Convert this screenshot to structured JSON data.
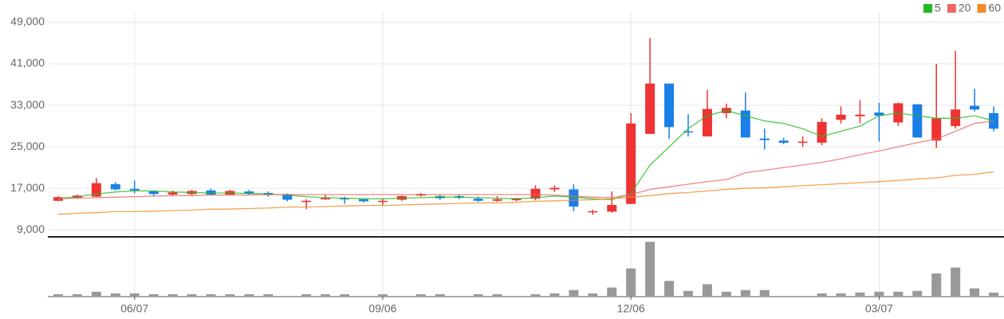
{
  "chart_data": {
    "type": "candlestick",
    "categories": [
      null,
      null,
      null,
      null,
      "06/07",
      null,
      null,
      null,
      null,
      null,
      null,
      null,
      null,
      null,
      null,
      null,
      null,
      "09/06",
      null,
      null,
      null,
      null,
      null,
      null,
      null,
      null,
      null,
      null,
      null,
      null,
      "12/06",
      null,
      null,
      null,
      null,
      null,
      null,
      null,
      null,
      null,
      null,
      null,
      null,
      "03/07",
      null,
      null,
      null,
      null,
      null,
      null
    ],
    "open": [
      14600,
      15200,
      15400,
      17800,
      16900,
      16400,
      15800,
      15900,
      16600,
      15800,
      16400,
      16100,
      15900,
      14400,
      14900,
      15100,
      14900,
      14400,
      14800,
      15600,
      15500,
      15500,
      15000,
      14600,
      14700,
      15000,
      16800,
      16800,
      12400,
      12500,
      14000,
      27500,
      37200,
      28000,
      27000,
      31500,
      32000,
      26600,
      26200,
      25800,
      25800,
      30200,
      30900,
      31600,
      29700,
      33200,
      26200,
      29000,
      32900,
      31500
    ],
    "high": [
      15500,
      15800,
      19000,
      18200,
      18500,
      16600,
      16600,
      16700,
      16900,
      16700,
      16700,
      16400,
      16000,
      14900,
      15800,
      15400,
      15100,
      15000,
      15600,
      16100,
      15700,
      15700,
      15400,
      15500,
      15200,
      17600,
      17600,
      17800,
      12900,
      16400,
      31500,
      46000,
      37200,
      31300,
      36000,
      33300,
      35500,
      28500,
      26700,
      27000,
      30500,
      32800,
      34000,
      33500,
      33500,
      33200,
      41000,
      43500,
      36200,
      32800
    ],
    "low": [
      14500,
      15000,
      15300,
      16600,
      16000,
      15500,
      15500,
      15700,
      15700,
      15700,
      15800,
      15400,
      14500,
      13000,
      14800,
      14000,
      14300,
      13800,
      14600,
      15400,
      14800,
      14900,
      14400,
      14400,
      14500,
      14700,
      16300,
      12600,
      11900,
      12300,
      14000,
      27500,
      26500,
      27000,
      27000,
      30500,
      26800,
      24500,
      25500,
      25000,
      25300,
      29500,
      29500,
      26000,
      29000,
      26800,
      24800,
      28500,
      31800,
      28000
    ],
    "close": [
      15300,
      15600,
      18000,
      16800,
      16600,
      15900,
      16200,
      16500,
      15800,
      16500,
      16000,
      15700,
      14800,
      14600,
      15100,
      14900,
      14500,
      14600,
      15500,
      15900,
      15100,
      15200,
      14600,
      14900,
      15000,
      16900,
      17100,
      13500,
      12600,
      13800,
      29500,
      37200,
      28800,
      27800,
      32300,
      32500,
      26800,
      26300,
      25800,
      26000,
      29800,
      31200,
      31200,
      31000,
      33400,
      26800,
      30500,
      32200,
      32200,
      28500
    ],
    "up_color": "#ee3333",
    "down_color": "#1a7fe6",
    "ylim": [
      7800,
      51000
    ],
    "yticks": [
      {
        "value": 9000,
        "label": "9,000"
      },
      {
        "value": 17000,
        "label": "17,000"
      },
      {
        "value": 25000,
        "label": "25,000"
      },
      {
        "value": 33000,
        "label": "33,000"
      },
      {
        "value": 41000,
        "label": "41,000"
      },
      {
        "value": 49000,
        "label": "49,000"
      }
    ],
    "grid": true,
    "legend": "top-right",
    "series": [
      {
        "name": "5",
        "color": "#22bb22",
        "values": [
          15000,
          15400,
          15900,
          16300,
          16500,
          16500,
          16300,
          16200,
          16100,
          16100,
          16000,
          15900,
          15700,
          15400,
          15200,
          15100,
          15000,
          15000,
          15100,
          15200,
          15300,
          15300,
          15200,
          15100,
          15000,
          15200,
          15500,
          15300,
          15000,
          14800,
          16000,
          21500,
          25000,
          28500,
          31000,
          32000,
          31000,
          30000,
          29500,
          28500,
          27000,
          28000,
          29000,
          31000,
          31500,
          31000,
          30500,
          30500,
          31000,
          30000
        ]
      },
      {
        "name": "20",
        "color": "#ee6666",
        "values": [
          15000,
          15100,
          15200,
          15300,
          15400,
          15500,
          15600,
          15600,
          15700,
          15700,
          15700,
          15800,
          15800,
          15800,
          15800,
          15800,
          15800,
          15800,
          15800,
          15800,
          15800,
          15800,
          15800,
          15800,
          15800,
          15800,
          15700,
          15500,
          15300,
          15200,
          15800,
          16800,
          17300,
          17800,
          18300,
          18700,
          20000,
          20500,
          21000,
          21500,
          22000,
          22700,
          23500,
          24200,
          25000,
          25800,
          26500,
          28000,
          29500,
          30000
        ]
      },
      {
        "name": "60",
        "color": "#f08c28",
        "values": [
          12000,
          12200,
          12300,
          12500,
          12500,
          12600,
          12700,
          12800,
          13000,
          13000,
          13100,
          13200,
          13400,
          13400,
          13500,
          13600,
          13700,
          13700,
          13800,
          13900,
          14000,
          14100,
          14200,
          14200,
          14300,
          14500,
          14600,
          14700,
          14800,
          15000,
          15300,
          15600,
          16000,
          16200,
          16500,
          16800,
          17000,
          17100,
          17300,
          17500,
          17700,
          17900,
          18100,
          18300,
          18500,
          18800,
          19000,
          19500,
          19700,
          20200
        ]
      }
    ],
    "volume": {
      "color": "#999999",
      "ylim": [
        0,
        70
      ],
      "values": [
        2,
        2,
        5,
        3,
        3,
        2,
        2,
        2,
        2,
        2,
        2,
        2,
        0,
        2,
        2,
        2,
        0,
        2,
        0,
        2,
        2,
        0,
        2,
        2,
        0,
        2,
        3,
        7,
        3,
        10,
        33,
        65,
        18,
        6,
        14,
        5,
        7,
        7,
        0,
        0,
        3,
        3,
        4,
        5,
        5,
        6,
        27,
        34,
        9,
        4
      ]
    }
  }
}
